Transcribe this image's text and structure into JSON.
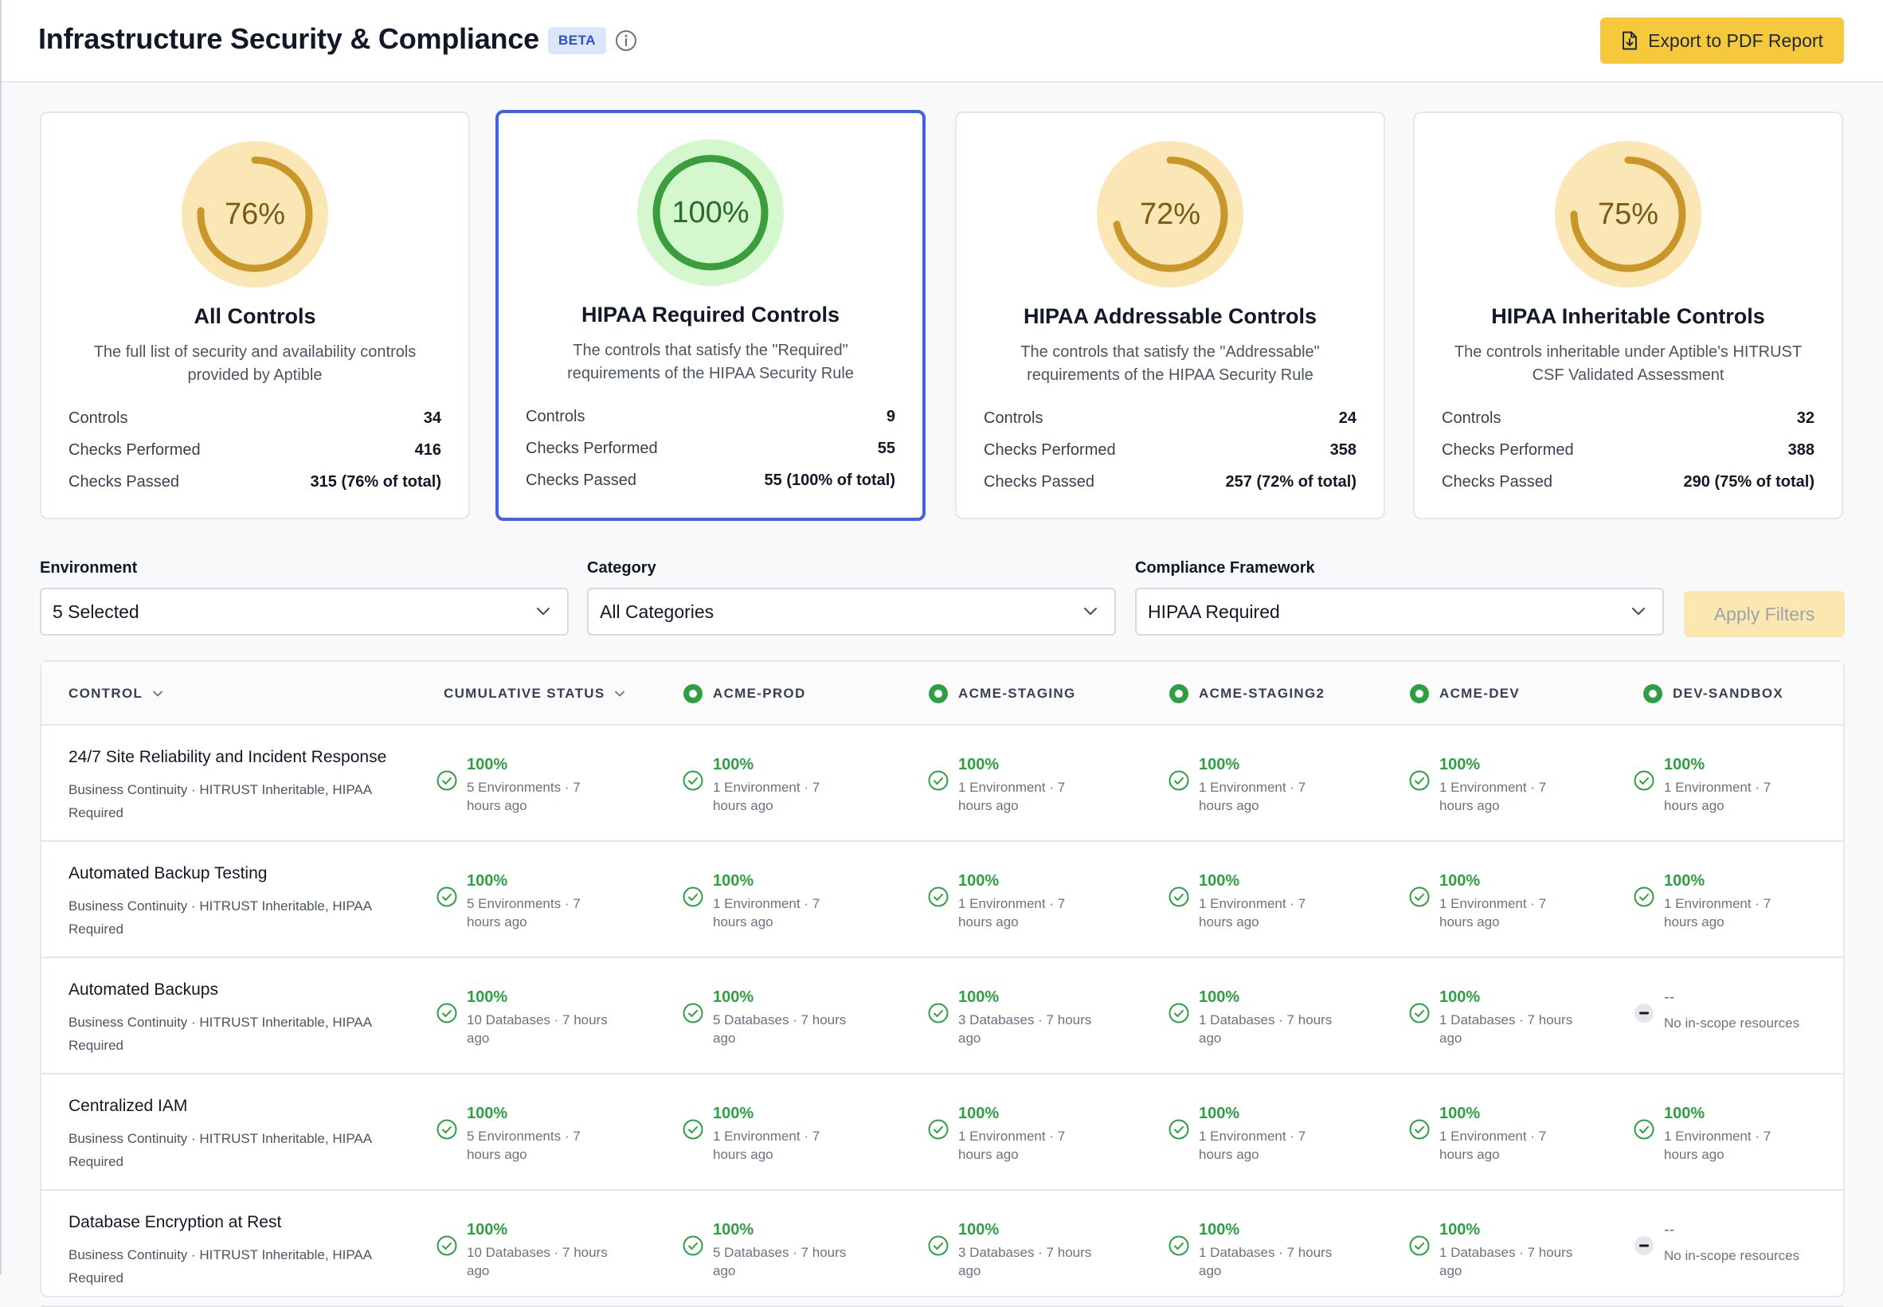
{
  "header": {
    "title": "Infrastructure Security & Compliance",
    "badge": "BETA",
    "export_label": "Export to PDF Report"
  },
  "cards": [
    {
      "pct_value": 76,
      "pct_label": "76%",
      "title": "All Controls",
      "desc": "The full list of security and availability controls provided by Aptible",
      "stats": [
        {
          "label": "Controls",
          "value": "34"
        },
        {
          "label": "Checks Performed",
          "value": "416"
        },
        {
          "label": "Checks Passed",
          "value": "315 (76% of total)"
        }
      ]
    },
    {
      "pct_value": 100,
      "pct_label": "100%",
      "title": "HIPAA Required Controls",
      "desc": "The controls that satisfy the \"Required\" requirements of the HIPAA Security Rule",
      "stats": [
        {
          "label": "Controls",
          "value": "9"
        },
        {
          "label": "Checks Performed",
          "value": "55"
        },
        {
          "label": "Checks Passed",
          "value": "55 (100% of total)"
        }
      ]
    },
    {
      "pct_value": 72,
      "pct_label": "72%",
      "title": "HIPAA Addressable Controls",
      "desc": "The controls that satisfy the \"Addressable\" requirements of the HIPAA Security Rule",
      "stats": [
        {
          "label": "Controls",
          "value": "24"
        },
        {
          "label": "Checks Performed",
          "value": "358"
        },
        {
          "label": "Checks Passed",
          "value": "257 (72% of total)"
        }
      ]
    },
    {
      "pct_value": 75,
      "pct_label": "75%",
      "title": "HIPAA Inheritable Controls",
      "desc": "The controls inheritable under Aptible's HITRUST CSF Validated Assessment",
      "stats": [
        {
          "label": "Controls",
          "value": "32"
        },
        {
          "label": "Checks Performed",
          "value": "388"
        },
        {
          "label": "Checks Passed",
          "value": "290 (75% of total)"
        }
      ]
    }
  ],
  "filters": {
    "environment": {
      "label": "Environment",
      "value": "5 Selected"
    },
    "category": {
      "label": "Category",
      "value": "All Categories"
    },
    "framework": {
      "label": "Compliance Framework",
      "value": "HIPAA Required"
    },
    "apply_label": "Apply Filters"
  },
  "table": {
    "columns": {
      "control": "CONTROL",
      "cumulative": "CUMULATIVE STATUS",
      "env": [
        "ACME-PROD",
        "ACME-STAGING",
        "ACME-STAGING2",
        "ACME-DEV",
        "DEV-SANDBOX"
      ]
    },
    "rows": [
      {
        "name": "24/7 Site Reliability and Incident Response",
        "meta": "Business Continuity · HITRUST Inheritable, HIPAA Required",
        "cells": [
          {
            "pct": "100%",
            "sub": "5 Environments · 7 hours ago"
          },
          {
            "pct": "100%",
            "sub": "1 Environment · 7 hours ago"
          },
          {
            "pct": "100%",
            "sub": "1 Environment · 7 hours ago"
          },
          {
            "pct": "100%",
            "sub": "1 Environment · 7 hours ago"
          },
          {
            "pct": "100%",
            "sub": "1 Environment · 7 hours ago"
          },
          {
            "pct": "100%",
            "sub": "1 Environment · 7 hours ago"
          }
        ]
      },
      {
        "name": "Automated Backup Testing",
        "meta": "Business Continuity · HITRUST Inheritable, HIPAA Required",
        "cells": [
          {
            "pct": "100%",
            "sub": "5 Environments · 7 hours ago"
          },
          {
            "pct": "100%",
            "sub": "1 Environment · 7 hours ago"
          },
          {
            "pct": "100%",
            "sub": "1 Environment · 7 hours ago"
          },
          {
            "pct": "100%",
            "sub": "1 Environment · 7 hours ago"
          },
          {
            "pct": "100%",
            "sub": "1 Environment · 7 hours ago"
          },
          {
            "pct": "100%",
            "sub": "1 Environment · 7 hours ago"
          }
        ]
      },
      {
        "name": "Automated Backups",
        "meta": "Business Continuity · HITRUST Inheritable, HIPAA Required",
        "cells": [
          {
            "pct": "100%",
            "sub": "10 Databases · 7 hours ago"
          },
          {
            "pct": "100%",
            "sub": "5 Databases · 7 hours ago"
          },
          {
            "pct": "100%",
            "sub": "3 Databases · 7 hours ago"
          },
          {
            "pct": "100%",
            "sub": "1 Databases · 7 hours ago"
          },
          {
            "pct": "100%",
            "sub": "1 Databases · 7 hours ago"
          },
          {
            "pct": "--",
            "sub": "No in-scope resources",
            "na": true
          }
        ]
      },
      {
        "name": "Centralized IAM",
        "meta": "Business Continuity · HITRUST Inheritable, HIPAA Required",
        "cells": [
          {
            "pct": "100%",
            "sub": "5 Environments · 7 hours ago"
          },
          {
            "pct": "100%",
            "sub": "1 Environment · 7 hours ago"
          },
          {
            "pct": "100%",
            "sub": "1 Environment · 7 hours ago"
          },
          {
            "pct": "100%",
            "sub": "1 Environment · 7 hours ago"
          },
          {
            "pct": "100%",
            "sub": "1 Environment · 7 hours ago"
          },
          {
            "pct": "100%",
            "sub": "1 Environment · 7 hours ago"
          }
        ]
      },
      {
        "name": "Database Encryption at Rest",
        "meta": "Business Continuity · HITRUST Inheritable, HIPAA Required",
        "cells": [
          {
            "pct": "100%",
            "sub": "10 Databases · 7 hours ago"
          },
          {
            "pct": "100%",
            "sub": "5 Databases · 7 hours ago"
          },
          {
            "pct": "100%",
            "sub": "3 Databases · 7 hours ago"
          },
          {
            "pct": "100%",
            "sub": "1 Databases · 7 hours ago"
          },
          {
            "pct": "100%",
            "sub": "1 Databases · 7 hours ago"
          },
          {
            "pct": "--",
            "sub": "No in-scope resources",
            "na": true
          }
        ]
      }
    ]
  },
  "colors": {
    "accent_yellow": "#f6c93d",
    "selected_border": "#4361e6",
    "pass_green": "#2ea043",
    "ring_gold": "#c9962a",
    "ring_gold_bg": "#fbe7b6",
    "ring_green": "#3c9d3c",
    "ring_green_bg": "#d5f7cd"
  },
  "icons": {
    "info": "info-circle-icon",
    "export": "file-download-icon",
    "check": "check-circle-icon",
    "na": "minus-circle-icon",
    "env": "status-dot-icon",
    "chevron": "chevron-down-icon"
  }
}
